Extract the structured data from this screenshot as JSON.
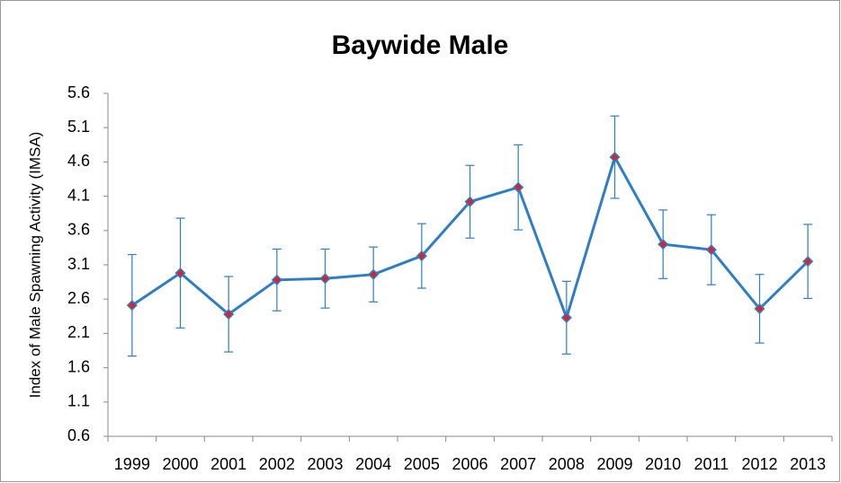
{
  "chart_data": {
    "type": "line",
    "title": "Baywide Male",
    "y_label": "Index of Male Spawning Activity (IMSA)",
    "categories": [
      "1999",
      "2000",
      "2001",
      "2002",
      "2003",
      "2004",
      "2005",
      "2006",
      "2007",
      "2008",
      "2009",
      "2010",
      "2011",
      "2012",
      "2013"
    ],
    "values": [
      2.51,
      2.98,
      2.38,
      2.88,
      2.9,
      2.96,
      3.23,
      4.02,
      4.23,
      2.33,
      4.67,
      3.4,
      3.32,
      2.46,
      3.15
    ],
    "errors": [
      0.74,
      0.8,
      0.55,
      0.45,
      0.43,
      0.4,
      0.47,
      0.53,
      0.62,
      0.53,
      0.6,
      0.5,
      0.51,
      0.5,
      0.54
    ],
    "color": "#2e7dc6",
    "marker_color": "#e0202a",
    "ylim": [
      0.6,
      5.6
    ],
    "yticks": [
      0.6,
      1.1,
      1.6,
      2.1,
      2.6,
      3.1,
      3.6,
      4.1,
      4.6,
      5.1,
      5.6
    ],
    "grid": false
  }
}
